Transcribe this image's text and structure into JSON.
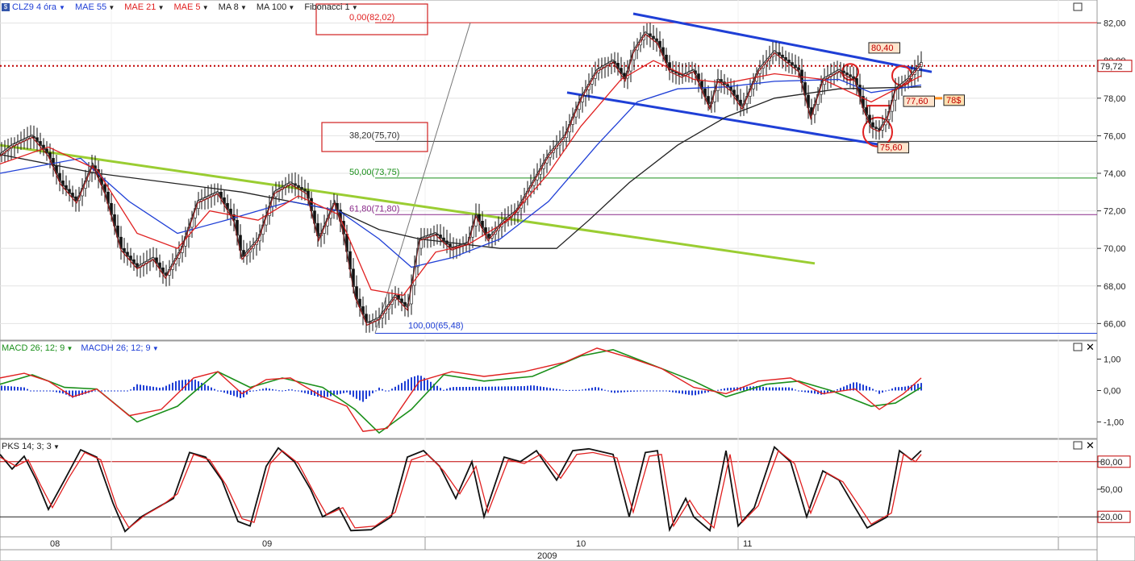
{
  "toolbar": {
    "symbol": "CLZ9 4 óra",
    "items": [
      {
        "label": "MAE 55",
        "color": "#1f3fd6"
      },
      {
        "label": "MAE 21",
        "color": "#e02020"
      },
      {
        "label": "MAE 5",
        "color": "#e02020"
      },
      {
        "label": "MA 8",
        "color": "#222222"
      },
      {
        "label": "MA 100",
        "color": "#222222"
      },
      {
        "label": "Fibonacci 1",
        "color": "#222222"
      }
    ]
  },
  "macd_toolbar": [
    {
      "label": "MACD 26; 12; 9",
      "color": "#1a8f1a"
    },
    {
      "label": "MACDH 26; 12; 9",
      "color": "#1f3fd6"
    }
  ],
  "pks_toolbar": [
    {
      "label": "PKS 14; 3; 3",
      "color": "#222222"
    }
  ],
  "price_axis": {
    "ticks": [
      "82,00",
      "80,00",
      "78,00",
      "76,00",
      "74,00",
      "72,00",
      "70,00",
      "68,00",
      "66,00"
    ],
    "last": "79,72",
    "last_value": 79.72
  },
  "macd_axis": {
    "ticks": [
      "1,00",
      "0,00",
      "-1,00"
    ]
  },
  "pks_axis": {
    "ticks": [
      "80,00",
      "50,00",
      "20,00"
    ]
  },
  "time_axis": {
    "months": [
      "08",
      "09",
      "10",
      "11"
    ],
    "year": "2009"
  },
  "fibonacci": [
    {
      "label": "0,00(82,02)",
      "value": 82.02,
      "color": "#e02020"
    },
    {
      "label": "38,20(75,70)",
      "value": 75.7,
      "color": "#333333"
    },
    {
      "label": "50,00(73,75)",
      "value": 73.75,
      "color": "#1a8f1a"
    },
    {
      "label": "61,80(71,80)",
      "value": 71.8,
      "color": "#8a2a8a"
    },
    {
      "label": "100,00(65,48)",
      "value": 65.48,
      "color": "#1f3fd6"
    }
  ],
  "annotations": [
    {
      "label": "80,40",
      "value": 80.4
    },
    {
      "label": "77,60",
      "value": 77.6
    },
    {
      "label": "78$",
      "value": 78.0
    },
    {
      "label": "75,60",
      "value": 75.6
    }
  ],
  "chart_data": {
    "type": "line",
    "price_range": [
      65.2,
      82.8
    ],
    "macd_range": [
      -1.45,
      1.45
    ],
    "pks_range": [
      0,
      100
    ],
    "price_path": [
      [
        0,
        75.0
      ],
      [
        15,
        75.5
      ],
      [
        40,
        76.0
      ],
      [
        60,
        75.0
      ],
      [
        75,
        73.5
      ],
      [
        95,
        72.5
      ],
      [
        115,
        74.5
      ],
      [
        130,
        73.0
      ],
      [
        150,
        70.0
      ],
      [
        170,
        69.0
      ],
      [
        190,
        69.5
      ],
      [
        205,
        68.5
      ],
      [
        225,
        70.0
      ],
      [
        245,
        72.5
      ],
      [
        270,
        73.0
      ],
      [
        290,
        71.5
      ],
      [
        300,
        69.5
      ],
      [
        320,
        70.5
      ],
      [
        340,
        73.0
      ],
      [
        360,
        73.5
      ],
      [
        380,
        73.0
      ],
      [
        395,
        70.5
      ],
      [
        415,
        72.5
      ],
      [
        425,
        71.0
      ],
      [
        440,
        67.5
      ],
      [
        455,
        66.0
      ],
      [
        470,
        66.3
      ],
      [
        490,
        67.5
      ],
      [
        505,
        66.8
      ],
      [
        520,
        70.5
      ],
      [
        540,
        70.8
      ],
      [
        560,
        70.0
      ],
      [
        580,
        70.3
      ],
      [
        590,
        71.8
      ],
      [
        605,
        70.5
      ],
      [
        625,
        71.5
      ],
      [
        640,
        72.0
      ],
      [
        660,
        73.5
      ],
      [
        680,
        75.0
      ],
      [
        700,
        76.0
      ],
      [
        720,
        78.0
      ],
      [
        740,
        79.5
      ],
      [
        760,
        80.0
      ],
      [
        775,
        79.0
      ],
      [
        785,
        80.5
      ],
      [
        800,
        81.5
      ],
      [
        815,
        81.0
      ],
      [
        830,
        79.5
      ],
      [
        845,
        79.2
      ],
      [
        860,
        79.5
      ],
      [
        880,
        77.5
      ],
      [
        890,
        79.0
      ],
      [
        905,
        78.5
      ],
      [
        920,
        77.5
      ],
      [
        940,
        79.5
      ],
      [
        960,
        80.5
      ],
      [
        975,
        80.0
      ],
      [
        990,
        79.5
      ],
      [
        1005,
        77.0
      ],
      [
        1020,
        79.0
      ],
      [
        1040,
        79.5
      ],
      [
        1060,
        79.0
      ],
      [
        1070,
        77.5
      ],
      [
        1080,
        76.5
      ],
      [
        1090,
        76.3
      ],
      [
        1100,
        77.0
      ],
      [
        1110,
        78.5
      ],
      [
        1125,
        79.0
      ],
      [
        1142,
        79.9
      ]
    ],
    "ma100_path": [
      [
        0,
        75.0
      ],
      [
        120,
        74.0
      ],
      [
        300,
        73.0
      ],
      [
        420,
        72.0
      ],
      [
        470,
        71.0
      ],
      [
        520,
        70.5
      ],
      [
        620,
        70.0
      ],
      [
        690,
        70.0
      ],
      [
        730,
        71.5
      ],
      [
        780,
        73.5
      ],
      [
        840,
        75.5
      ],
      [
        900,
        77.0
      ],
      [
        960,
        78.0
      ],
      [
        1040,
        78.5
      ],
      [
        1142,
        78.6
      ]
    ],
    "mae55_path": [
      [
        0,
        74.0
      ],
      [
        100,
        74.8
      ],
      [
        160,
        72.5
      ],
      [
        220,
        70.8
      ],
      [
        280,
        71.5
      ],
      [
        360,
        72.5
      ],
      [
        420,
        72.0
      ],
      [
        470,
        70.5
      ],
      [
        510,
        69.0
      ],
      [
        560,
        69.5
      ],
      [
        620,
        70.5
      ],
      [
        680,
        72.5
      ],
      [
        740,
        75.5
      ],
      [
        790,
        77.8
      ],
      [
        840,
        78.5
      ],
      [
        900,
        78.6
      ],
      [
        960,
        78.9
      ],
      [
        1040,
        79.0
      ],
      [
        1080,
        78.3
      ],
      [
        1142,
        78.7
      ]
    ],
    "mae21_path": [
      [
        0,
        74.5
      ],
      [
        60,
        75.4
      ],
      [
        120,
        74.2
      ],
      [
        170,
        70.8
      ],
      [
        220,
        70.0
      ],
      [
        260,
        72.0
      ],
      [
        320,
        71.5
      ],
      [
        370,
        72.8
      ],
      [
        420,
        71.8
      ],
      [
        460,
        67.8
      ],
      [
        500,
        67.5
      ],
      [
        540,
        69.8
      ],
      [
        580,
        70.2
      ],
      [
        630,
        71.5
      ],
      [
        680,
        74.0
      ],
      [
        720,
        76.5
      ],
      [
        770,
        79.0
      ],
      [
        810,
        80.0
      ],
      [
        860,
        79.0
      ],
      [
        900,
        78.8
      ],
      [
        960,
        79.3
      ],
      [
        1020,
        79.0
      ],
      [
        1080,
        77.8
      ],
      [
        1142,
        79.2
      ]
    ],
    "macd_path": [
      [
        0,
        0.4
      ],
      [
        30,
        0.55
      ],
      [
        60,
        0.3
      ],
      [
        90,
        -0.2
      ],
      [
        120,
        0.05
      ],
      [
        160,
        -0.8
      ],
      [
        200,
        -0.6
      ],
      [
        240,
        0.4
      ],
      [
        270,
        0.6
      ],
      [
        300,
        -0.1
      ],
      [
        330,
        0.35
      ],
      [
        360,
        0.4
      ],
      [
        400,
        -0.2
      ],
      [
        430,
        -0.5
      ],
      [
        450,
        -1.3
      ],
      [
        480,
        -1.2
      ],
      [
        520,
        0.3
      ],
      [
        560,
        0.6
      ],
      [
        600,
        0.45
      ],
      [
        650,
        0.6
      ],
      [
        700,
        0.9
      ],
      [
        740,
        1.35
      ],
      [
        780,
        1.05
      ],
      [
        820,
        0.7
      ],
      [
        860,
        0.1
      ],
      [
        900,
        -0.1
      ],
      [
        940,
        0.3
      ],
      [
        980,
        0.4
      ],
      [
        1020,
        -0.1
      ],
      [
        1060,
        0.05
      ],
      [
        1090,
        -0.6
      ],
      [
        1120,
        -0.1
      ],
      [
        1142,
        0.4
      ]
    ],
    "signal_path": [
      [
        0,
        0.2
      ],
      [
        40,
        0.5
      ],
      [
        80,
        0.1
      ],
      [
        120,
        0.05
      ],
      [
        170,
        -1.0
      ],
      [
        220,
        -0.5
      ],
      [
        270,
        0.6
      ],
      [
        310,
        0.1
      ],
      [
        350,
        0.4
      ],
      [
        400,
        0.1
      ],
      [
        440,
        -0.6
      ],
      [
        470,
        -1.35
      ],
      [
        510,
        -0.6
      ],
      [
        550,
        0.5
      ],
      [
        600,
        0.3
      ],
      [
        660,
        0.45
      ],
      [
        720,
        1.1
      ],
      [
        760,
        1.3
      ],
      [
        800,
        0.9
      ],
      [
        860,
        0.3
      ],
      [
        900,
        -0.2
      ],
      [
        950,
        0.2
      ],
      [
        990,
        0.3
      ],
      [
        1030,
        0.0
      ],
      [
        1080,
        -0.5
      ],
      [
        1110,
        -0.4
      ],
      [
        1142,
        0.1
      ]
    ],
    "pks_path": [
      [
        0,
        88
      ],
      [
        15,
        72
      ],
      [
        30,
        86
      ],
      [
        45,
        60
      ],
      [
        60,
        28
      ],
      [
        80,
        60
      ],
      [
        100,
        93
      ],
      [
        120,
        85
      ],
      [
        140,
        35
      ],
      [
        155,
        4
      ],
      [
        175,
        20
      ],
      [
        195,
        30
      ],
      [
        215,
        40
      ],
      [
        235,
        90
      ],
      [
        255,
        85
      ],
      [
        275,
        60
      ],
      [
        295,
        15
      ],
      [
        310,
        10
      ],
      [
        330,
        75
      ],
      [
        345,
        95
      ],
      [
        365,
        80
      ],
      [
        385,
        50
      ],
      [
        400,
        20
      ],
      [
        420,
        30
      ],
      [
        435,
        5
      ],
      [
        460,
        6
      ],
      [
        485,
        20
      ],
      [
        505,
        85
      ],
      [
        525,
        92
      ],
      [
        545,
        75
      ],
      [
        565,
        40
      ],
      [
        585,
        80
      ],
      [
        600,
        20
      ],
      [
        625,
        85
      ],
      [
        645,
        80
      ],
      [
        665,
        92
      ],
      [
        690,
        60
      ],
      [
        710,
        92
      ],
      [
        730,
        94
      ],
      [
        760,
        88
      ],
      [
        780,
        20
      ],
      [
        800,
        90
      ],
      [
        815,
        92
      ],
      [
        830,
        6
      ],
      [
        850,
        40
      ],
      [
        860,
        20
      ],
      [
        880,
        5
      ],
      [
        900,
        92
      ],
      [
        915,
        10
      ],
      [
        935,
        30
      ],
      [
        960,
        96
      ],
      [
        980,
        80
      ],
      [
        1000,
        20
      ],
      [
        1020,
        70
      ],
      [
        1040,
        60
      ],
      [
        1060,
        30
      ],
      [
        1075,
        8
      ],
      [
        1100,
        20
      ],
      [
        1115,
        92
      ],
      [
        1130,
        82
      ],
      [
        1142,
        92
      ]
    ],
    "pks_signal_path": [
      [
        0,
        85
      ],
      [
        20,
        75
      ],
      [
        35,
        82
      ],
      [
        50,
        55
      ],
      [
        65,
        30
      ],
      [
        85,
        62
      ],
      [
        105,
        90
      ],
      [
        125,
        82
      ],
      [
        145,
        30
      ],
      [
        160,
        8
      ],
      [
        180,
        22
      ],
      [
        200,
        32
      ],
      [
        220,
        45
      ],
      [
        240,
        88
      ],
      [
        260,
        82
      ],
      [
        280,
        55
      ],
      [
        300,
        18
      ],
      [
        315,
        14
      ],
      [
        335,
        78
      ],
      [
        350,
        92
      ],
      [
        370,
        78
      ],
      [
        390,
        45
      ],
      [
        405,
        22
      ],
      [
        425,
        30
      ],
      [
        440,
        8
      ],
      [
        465,
        10
      ],
      [
        490,
        25
      ],
      [
        510,
        82
      ],
      [
        530,
        88
      ],
      [
        550,
        70
      ],
      [
        570,
        45
      ],
      [
        590,
        75
      ],
      [
        605,
        25
      ],
      [
        630,
        82
      ],
      [
        650,
        78
      ],
      [
        670,
        88
      ],
      [
        695,
        62
      ],
      [
        715,
        88
      ],
      [
        735,
        90
      ],
      [
        765,
        84
      ],
      [
        785,
        25
      ],
      [
        805,
        86
      ],
      [
        820,
        88
      ],
      [
        835,
        10
      ],
      [
        855,
        38
      ],
      [
        865,
        24
      ],
      [
        885,
        8
      ],
      [
        905,
        88
      ],
      [
        920,
        14
      ],
      [
        940,
        32
      ],
      [
        965,
        92
      ],
      [
        985,
        78
      ],
      [
        1005,
        24
      ],
      [
        1025,
        68
      ],
      [
        1045,
        58
      ],
      [
        1065,
        32
      ],
      [
        1080,
        12
      ],
      [
        1105,
        24
      ],
      [
        1120,
        88
      ],
      [
        1135,
        80
      ],
      [
        1142,
        88
      ]
    ]
  }
}
